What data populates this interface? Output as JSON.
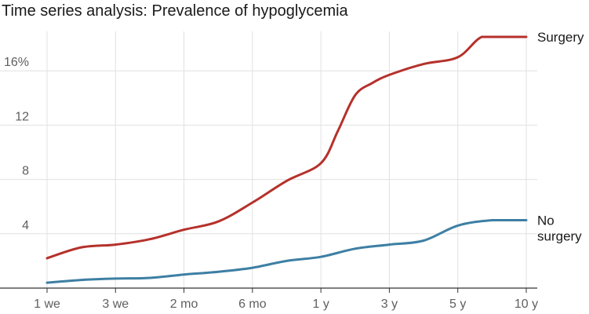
{
  "chart_data": {
    "type": "line",
    "title": "Time series analysis: Prevalence of hypoglycemia",
    "xlabel": "",
    "ylabel": "",
    "categories": [
      "1 we",
      "3 we",
      "2 mo",
      "6 mo",
      "1 y",
      "3 y",
      "5 y",
      "10 y"
    ],
    "ylim": [
      0,
      18.5
    ],
    "yticks": [
      {
        "value": 4,
        "label": "4"
      },
      {
        "value": 8,
        "label": "8"
      },
      {
        "value": 12,
        "label": "12"
      },
      {
        "value": 16,
        "label": "16%"
      }
    ],
    "grid": true,
    "series": [
      {
        "name": "Surgery",
        "label_lines": [
          "Surgery"
        ],
        "color": "#b5312b",
        "x": [
          0,
          0.5,
          1,
          1.5,
          2,
          2.5,
          3,
          3.5,
          4,
          4.25,
          4.5,
          4.75,
          5,
          5.5,
          6,
          6.35,
          6.7,
          7
        ],
        "y": [
          2.2,
          3.0,
          3.2,
          3.6,
          4.3,
          4.9,
          6.3,
          7.9,
          9.2,
          11.6,
          14.2,
          15.1,
          15.7,
          16.5,
          17.0,
          18.5,
          18.5,
          18.5
        ]
      },
      {
        "name": "No surgery",
        "label_lines": [
          "No",
          "surgery"
        ],
        "color": "#3d7fa3",
        "x": [
          0,
          0.5,
          1,
          1.5,
          2,
          2.5,
          3,
          3.5,
          4,
          4.5,
          5,
          5.5,
          6,
          6.5,
          7
        ],
        "y": [
          0.4,
          0.6,
          0.7,
          0.75,
          1.0,
          1.2,
          1.5,
          2.0,
          2.3,
          2.9,
          3.2,
          3.5,
          4.6,
          5.0,
          5.0
        ]
      }
    ]
  }
}
